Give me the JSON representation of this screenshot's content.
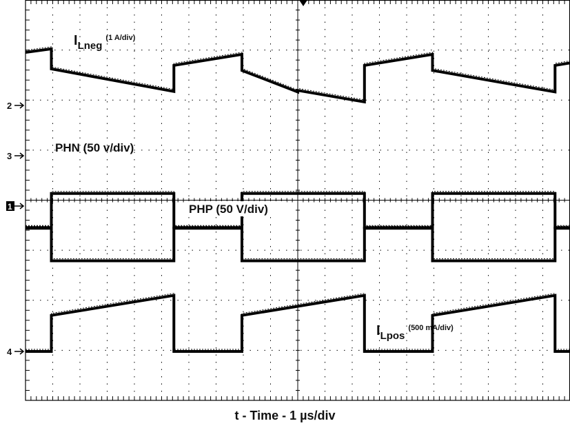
{
  "chart_data": {
    "type": "line",
    "xlabel": "t - Time - 1 µs/div",
    "traces": [
      {
        "name": "ILneg",
        "label_main": "I",
        "label_sub": "Lneg",
        "label_scale": "(1 A/div)",
        "x": [
          0.0,
          0.95,
          0.95,
          5.45,
          5.45,
          7.95,
          7.95,
          10.0,
          10.0,
          12.45,
          12.45,
          14.95,
          14.95,
          19.45,
          19.45,
          20.0
        ],
        "y": [
          1.06,
          1.13,
          0.73,
          0.28,
          0.8,
          1.02,
          0.7,
          0.27,
          0.3,
          0.07,
          0.8,
          1.02,
          0.7,
          0.27,
          0.8,
          0.85
        ]
      },
      {
        "name": "PHN",
        "label_main": "PHN (50 v/div)",
        "x": [
          0.0,
          0.95,
          0.95,
          5.45,
          5.45,
          7.95,
          7.95,
          12.45,
          12.45,
          14.95,
          14.95,
          19.45,
          19.45,
          20.0
        ],
        "y": [
          -1.45,
          -1.45,
          -2.1,
          -2.1,
          -1.45,
          -1.45,
          -2.1,
          -2.1,
          -1.45,
          -1.45,
          -2.1,
          -2.1,
          -1.45,
          -1.45
        ]
      },
      {
        "name": "PHP",
        "label_main": "PHP (50 V/div)",
        "x": [
          0.0,
          0.95,
          0.95,
          5.45,
          5.45,
          7.95,
          7.95,
          12.45,
          12.45,
          14.95,
          14.95,
          19.45,
          19.45,
          20.0
        ],
        "y": [
          -0.43,
          -0.43,
          0.25,
          0.25,
          -0.43,
          -0.43,
          0.25,
          0.25,
          -0.43,
          -0.43,
          0.25,
          0.25,
          -0.43,
          -0.43
        ]
      },
      {
        "name": "ILpos",
        "label_main": "I",
        "label_sub": "Lpos",
        "label_scale": "(500 mA/div)",
        "x": [
          0.0,
          0.95,
          0.95,
          5.45,
          5.45,
          7.95,
          7.95,
          12.45,
          12.45,
          14.95,
          14.95,
          19.45,
          19.45,
          20.0
        ],
        "y": [
          0.0,
          0.0,
          0.72,
          1.12,
          0.0,
          0.0,
          0.72,
          1.12,
          0.0,
          0.0,
          0.72,
          1.12,
          0.0,
          0.0
        ]
      }
    ],
    "channel_markers": [
      "2",
      "3",
      "1",
      "4"
    ],
    "grid": true,
    "x_divisions": 20,
    "y_divisions": 8,
    "colors": {
      "trace": "#000000",
      "grid": "#000000",
      "background": "#ffffff"
    }
  }
}
